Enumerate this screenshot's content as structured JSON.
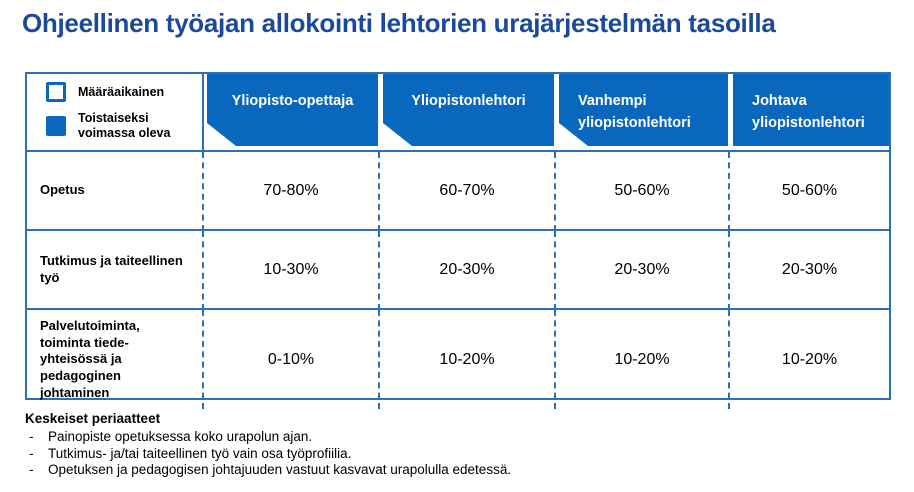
{
  "title": "Ohjeellinen työajan allokointi lehtorien urajärjestelmän tasoilla",
  "colors": {
    "title_blue": "#1b499c",
    "header_blue": "#0a67be",
    "border_blue": "#2e6fb5"
  },
  "legend": {
    "items": [
      {
        "label": "Määräaikainen",
        "swatch": "outline-square"
      },
      {
        "label": "Toistaiseksi voimassa oleva",
        "swatch": "filled-square"
      }
    ]
  },
  "table": {
    "columns": [
      {
        "label": "Yliopisto-opettaja",
        "fixed_term_corner": true
      },
      {
        "label": "Yliopistonlehtori",
        "fixed_term_corner": true
      },
      {
        "label": "Vanhempi yliopistonlehtori",
        "fixed_term_corner": true
      },
      {
        "label": "Johtava yliopistonlehtori",
        "fixed_term_corner": false
      }
    ],
    "rows": [
      {
        "label": "Opetus",
        "values": [
          "70-80%",
          "60-70%",
          "50-60%",
          "50-60%"
        ]
      },
      {
        "label": "Tutkimus ja taiteellinen työ",
        "values": [
          "10-30%",
          "20-30%",
          "20-30%",
          "20-30%"
        ]
      },
      {
        "label": "Palvelutoiminta, toiminta tiede-yhteisössä ja pedagoginen johtaminen",
        "values": [
          "0-10%",
          "10-20%",
          "10-20%",
          "10-20%"
        ]
      }
    ]
  },
  "notes": {
    "title": "Keskeiset periaatteet",
    "items": [
      "Painopiste opetuksessa koko urapolun ajan.",
      "Tutkimus- ja/tai taiteellinen työ vain osa työprofiilia.",
      "Opetuksen ja pedagogisen johtajuuden vastuut kasvavat urapolulla edetessä."
    ]
  }
}
